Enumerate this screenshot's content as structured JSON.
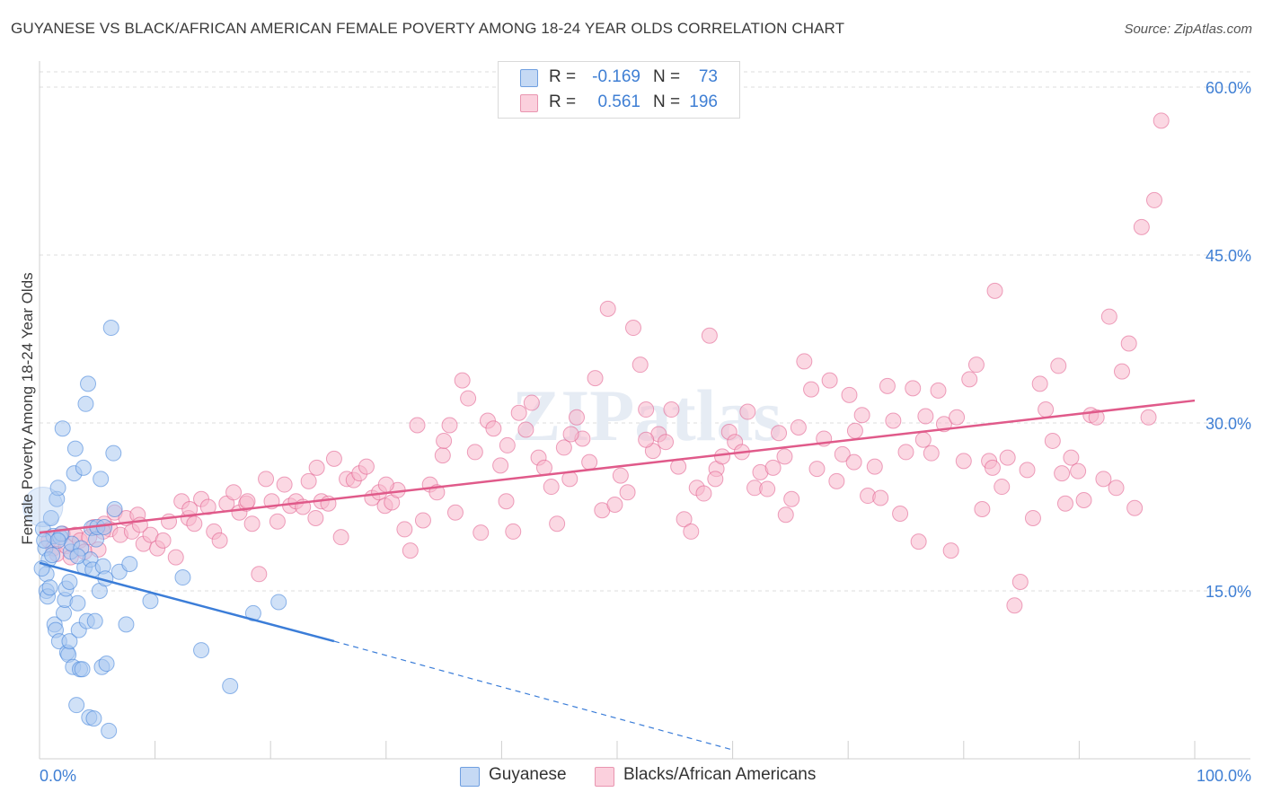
{
  "title": "GUYANESE VS BLACK/AFRICAN AMERICAN FEMALE POVERTY AMONG 18-24 YEAR OLDS CORRELATION CHART",
  "source": "Source: ZipAtlas.com",
  "watermark": "ZIPatlas",
  "legend": {
    "rows": [
      {
        "r_label": "R =",
        "r_value": "-0.169",
        "n_label": "N =",
        "n_value": "73",
        "color": "#a9c8f0"
      },
      {
        "r_label": "R =",
        "r_value": "0.561",
        "n_label": "N =",
        "n_value": "196",
        "color": "#f7b8cc"
      }
    ]
  },
  "bottom_legend": [
    {
      "label": "Guyanese",
      "color": "#a9c8f0"
    },
    {
      "label": "Blacks/African Americans",
      "color": "#f7b8cc"
    }
  ],
  "chart_data": {
    "type": "scatter",
    "title": "GUYANESE VS BLACK/AFRICAN AMERICAN FEMALE POVERTY AMONG 18-24 YEAR OLDS CORRELATION CHART",
    "xlabel": "",
    "ylabel": "Female Poverty Among 18-24 Year Olds",
    "xlim": [
      0,
      100
    ],
    "ylim": [
      0,
      60
    ],
    "x_tick_labels": [
      "0.0%",
      "100.0%"
    ],
    "y_ticks": [
      15,
      30,
      45,
      60
    ],
    "y_tick_labels": [
      "15.0%",
      "30.0%",
      "45.0%",
      "60.0%"
    ],
    "grid": true,
    "series": [
      {
        "name": "Guyanese",
        "color": "#3b7dd8",
        "fill": "#a9c8f0",
        "trend": {
          "x0": 0,
          "y0": 17.5,
          "x1": 25.5,
          "y1": 10.5,
          "dashed_to_x": 60,
          "dashed_to_y": 0.8
        },
        "points": [
          [
            0.3,
            20.5
          ],
          [
            0.5,
            18.8
          ],
          [
            0.6,
            16.5
          ],
          [
            0.6,
            15.0
          ],
          [
            0.7,
            14.5
          ],
          [
            0.8,
            17.8
          ],
          [
            1.0,
            21.5
          ],
          [
            1.1,
            18.2
          ],
          [
            1.2,
            19.9
          ],
          [
            1.3,
            12.0
          ],
          [
            1.4,
            11.5
          ],
          [
            1.5,
            23.2
          ],
          [
            1.6,
            24.2
          ],
          [
            1.7,
            10.5
          ],
          [
            1.8,
            19.8
          ],
          [
            2.0,
            29.5
          ],
          [
            2.1,
            13.0
          ],
          [
            2.2,
            14.2
          ],
          [
            2.3,
            15.2
          ],
          [
            2.4,
            9.5
          ],
          [
            2.5,
            9.3
          ],
          [
            2.6,
            10.5
          ],
          [
            2.7,
            18.5
          ],
          [
            2.8,
            19.2
          ],
          [
            2.9,
            8.2
          ],
          [
            3.0,
            25.5
          ],
          [
            3.1,
            27.7
          ],
          [
            3.2,
            4.8
          ],
          [
            3.3,
            13.9
          ],
          [
            3.4,
            11.5
          ],
          [
            3.5,
            8.0
          ],
          [
            3.6,
            18.8
          ],
          [
            3.7,
            8.0
          ],
          [
            3.8,
            26.0
          ],
          [
            3.9,
            17.1
          ],
          [
            4.0,
            31.7
          ],
          [
            4.1,
            12.3
          ],
          [
            4.2,
            33.5
          ],
          [
            4.3,
            3.7
          ],
          [
            4.4,
            17.8
          ],
          [
            4.5,
            20.6
          ],
          [
            4.6,
            16.9
          ],
          [
            4.7,
            3.6
          ],
          [
            4.8,
            12.3
          ],
          [
            4.9,
            19.6
          ],
          [
            5.0,
            20.7
          ],
          [
            5.2,
            15.0
          ],
          [
            5.3,
            25.0
          ],
          [
            5.4,
            8.2
          ],
          [
            5.5,
            17.2
          ],
          [
            5.6,
            20.7
          ],
          [
            5.7,
            16.1
          ],
          [
            5.8,
            8.5
          ],
          [
            6.0,
            2.5
          ],
          [
            6.2,
            38.5
          ],
          [
            6.4,
            27.3
          ],
          [
            6.5,
            22.3
          ],
          [
            6.9,
            16.7
          ],
          [
            7.5,
            12.0
          ],
          [
            7.8,
            17.4
          ],
          [
            9.6,
            14.1
          ],
          [
            12.4,
            16.2
          ],
          [
            14.0,
            9.7
          ],
          [
            16.5,
            6.5
          ],
          [
            18.5,
            13.0
          ],
          [
            20.7,
            14.0
          ],
          [
            0.2,
            17.0
          ],
          [
            0.4,
            19.5
          ],
          [
            1.9,
            20.1
          ],
          [
            2.6,
            15.8
          ],
          [
            3.3,
            18.1
          ],
          [
            0.9,
            15.3
          ],
          [
            1.6,
            19.5
          ]
        ]
      },
      {
        "name": "Blacks/African Americans",
        "color": "#e05a8a",
        "fill": "#f7b8cc",
        "trend": {
          "x0": 0,
          "y0": 20.2,
          "x1": 100,
          "y1": 32.0
        },
        "points": [
          [
            0.8,
            19.5
          ],
          [
            1.2,
            18.8
          ],
          [
            1.5,
            18.3
          ],
          [
            2.0,
            20.1
          ],
          [
            2.3,
            19.0
          ],
          [
            2.7,
            18.0
          ],
          [
            3.1,
            20.0
          ],
          [
            3.5,
            19.5
          ],
          [
            3.9,
            18.5
          ],
          [
            4.3,
            19.8
          ],
          [
            4.7,
            20.7
          ],
          [
            5.1,
            18.7
          ],
          [
            5.6,
            21.0
          ],
          [
            6.1,
            20.5
          ],
          [
            6.5,
            22.0
          ],
          [
            7.0,
            20.0
          ],
          [
            7.5,
            21.5
          ],
          [
            8.0,
            20.3
          ],
          [
            8.5,
            21.8
          ],
          [
            9.0,
            19.2
          ],
          [
            9.6,
            20.0
          ],
          [
            10.2,
            18.8
          ],
          [
            10.7,
            19.5
          ],
          [
            11.2,
            21.2
          ],
          [
            11.8,
            18.0
          ],
          [
            12.3,
            23.0
          ],
          [
            12.9,
            21.5
          ],
          [
            13.4,
            21.0
          ],
          [
            14.0,
            23.2
          ],
          [
            14.6,
            22.5
          ],
          [
            15.1,
            20.3
          ],
          [
            15.6,
            19.5
          ],
          [
            16.2,
            22.8
          ],
          [
            16.8,
            23.8
          ],
          [
            17.3,
            22.0
          ],
          [
            17.9,
            22.8
          ],
          [
            18.4,
            21.0
          ],
          [
            19.0,
            16.5
          ],
          [
            19.6,
            25.0
          ],
          [
            20.1,
            23.0
          ],
          [
            20.6,
            21.2
          ],
          [
            21.2,
            24.5
          ],
          [
            21.7,
            22.6
          ],
          [
            22.2,
            23.0
          ],
          [
            22.8,
            22.5
          ],
          [
            23.3,
            24.8
          ],
          [
            23.9,
            21.5
          ],
          [
            24.4,
            23.0
          ],
          [
            25.0,
            22.8
          ],
          [
            25.5,
            26.8
          ],
          [
            26.1,
            19.8
          ],
          [
            26.6,
            25.0
          ],
          [
            27.2,
            24.9
          ],
          [
            27.7,
            25.5
          ],
          [
            28.3,
            26.1
          ],
          [
            28.8,
            23.3
          ],
          [
            29.4,
            23.8
          ],
          [
            29.9,
            22.6
          ],
          [
            30.5,
            22.9
          ],
          [
            31.0,
            24.0
          ],
          [
            31.6,
            20.5
          ],
          [
            32.1,
            18.6
          ],
          [
            32.7,
            29.8
          ],
          [
            33.2,
            21.3
          ],
          [
            33.8,
            24.5
          ],
          [
            34.4,
            23.8
          ],
          [
            34.9,
            27.1
          ],
          [
            35.5,
            29.8
          ],
          [
            36.0,
            22.0
          ],
          [
            36.6,
            33.8
          ],
          [
            37.1,
            32.2
          ],
          [
            37.7,
            27.4
          ],
          [
            38.2,
            20.2
          ],
          [
            38.8,
            30.2
          ],
          [
            39.3,
            29.5
          ],
          [
            39.9,
            26.2
          ],
          [
            40.4,
            23.0
          ],
          [
            41.0,
            20.3
          ],
          [
            41.5,
            30.9
          ],
          [
            42.1,
            29.4
          ],
          [
            42.6,
            31.8
          ],
          [
            43.2,
            26.9
          ],
          [
            43.7,
            26.0
          ],
          [
            44.3,
            24.3
          ],
          [
            44.8,
            21.0
          ],
          [
            45.4,
            27.8
          ],
          [
            45.9,
            25.0
          ],
          [
            46.5,
            30.5
          ],
          [
            47.0,
            28.6
          ],
          [
            47.6,
            26.5
          ],
          [
            48.1,
            34.0
          ],
          [
            48.7,
            22.2
          ],
          [
            49.2,
            40.2
          ],
          [
            49.8,
            22.7
          ],
          [
            50.3,
            25.3
          ],
          [
            50.9,
            23.8
          ],
          [
            51.4,
            38.5
          ],
          [
            52.0,
            35.2
          ],
          [
            52.5,
            31.2
          ],
          [
            53.1,
            27.5
          ],
          [
            53.6,
            29.0
          ],
          [
            54.2,
            28.3
          ],
          [
            54.7,
            31.2
          ],
          [
            55.3,
            26.1
          ],
          [
            55.8,
            21.4
          ],
          [
            56.4,
            20.3
          ],
          [
            56.9,
            24.2
          ],
          [
            57.5,
            23.7
          ],
          [
            58.0,
            37.8
          ],
          [
            58.6,
            25.9
          ],
          [
            59.1,
            27.0
          ],
          [
            59.7,
            29.2
          ],
          [
            60.2,
            28.3
          ],
          [
            60.8,
            27.4
          ],
          [
            61.3,
            31.0
          ],
          [
            61.9,
            24.2
          ],
          [
            62.4,
            25.6
          ],
          [
            63.0,
            24.1
          ],
          [
            63.5,
            26.0
          ],
          [
            64.0,
            29.1
          ],
          [
            64.6,
            21.8
          ],
          [
            65.1,
            23.2
          ],
          [
            65.7,
            29.6
          ],
          [
            66.2,
            35.5
          ],
          [
            66.8,
            33.0
          ],
          [
            67.3,
            25.9
          ],
          [
            67.9,
            28.6
          ],
          [
            68.4,
            33.8
          ],
          [
            69.0,
            24.8
          ],
          [
            69.5,
            27.2
          ],
          [
            70.1,
            32.5
          ],
          [
            70.6,
            29.3
          ],
          [
            71.2,
            30.7
          ],
          [
            71.7,
            23.5
          ],
          [
            72.3,
            26.1
          ],
          [
            72.8,
            23.3
          ],
          [
            73.4,
            33.3
          ],
          [
            73.9,
            30.2
          ],
          [
            74.5,
            21.9
          ],
          [
            75.0,
            27.4
          ],
          [
            75.6,
            33.1
          ],
          [
            76.1,
            19.4
          ],
          [
            76.7,
            30.6
          ],
          [
            77.2,
            27.3
          ],
          [
            77.8,
            32.9
          ],
          [
            78.3,
            29.9
          ],
          [
            78.9,
            18.6
          ],
          [
            79.4,
            30.5
          ],
          [
            80.0,
            26.6
          ],
          [
            80.5,
            33.9
          ],
          [
            81.1,
            35.2
          ],
          [
            81.6,
            22.3
          ],
          [
            82.2,
            26.6
          ],
          [
            82.7,
            41.8
          ],
          [
            83.3,
            24.3
          ],
          [
            83.8,
            26.9
          ],
          [
            84.4,
            13.7
          ],
          [
            84.9,
            15.8
          ],
          [
            85.5,
            25.8
          ],
          [
            86.0,
            21.5
          ],
          [
            86.6,
            33.5
          ],
          [
            87.1,
            31.2
          ],
          [
            87.7,
            28.4
          ],
          [
            88.2,
            35.1
          ],
          [
            88.8,
            22.8
          ],
          [
            89.3,
            26.9
          ],
          [
            89.9,
            25.7
          ],
          [
            90.4,
            23.1
          ],
          [
            91.0,
            30.7
          ],
          [
            91.5,
            30.5
          ],
          [
            92.1,
            25.0
          ],
          [
            92.6,
            39.5
          ],
          [
            93.2,
            24.2
          ],
          [
            93.7,
            34.6
          ],
          [
            94.3,
            37.1
          ],
          [
            94.8,
            22.4
          ],
          [
            95.4,
            47.5
          ],
          [
            96.0,
            30.5
          ],
          [
            96.5,
            49.9
          ],
          [
            97.1,
            57.0
          ],
          [
            5.5,
            20.3
          ],
          [
            8.7,
            20.9
          ],
          [
            13.0,
            22.3
          ],
          [
            18.0,
            23.0
          ],
          [
            24.0,
            26.0
          ],
          [
            30.0,
            24.5
          ],
          [
            35.0,
            28.4
          ],
          [
            40.5,
            28.0
          ],
          [
            46.0,
            29.0
          ],
          [
            52.5,
            28.5
          ],
          [
            58.5,
            25.0
          ],
          [
            64.5,
            27.0
          ],
          [
            70.5,
            26.5
          ],
          [
            76.5,
            28.5
          ],
          [
            82.5,
            26.0
          ],
          [
            88.5,
            25.5
          ]
        ]
      }
    ]
  }
}
